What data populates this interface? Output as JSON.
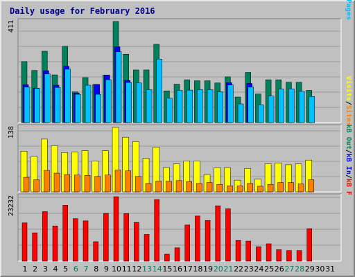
{
  "title": "Daily usage for February 2016",
  "colors": {
    "background": "#c0c0c0",
    "panel": "#c0c0c0",
    "grid": "#9a9a9a",
    "hits": "#00805c",
    "files": "#0000ff",
    "pages": "#00c0ff",
    "visits": "#ffff00",
    "sites": "#ff8000",
    "kbf": "#ff0000",
    "kbin": "#0000ff",
    "kbout": "#00805c",
    "weekday": "#000000",
    "weekend": "#00805c"
  },
  "chart_data": [
    {
      "type": "bar",
      "name": "hits-files-pages",
      "ymax_label": "411",
      "ylim": [
        0,
        411
      ],
      "categories": [
        "1",
        "2",
        "3",
        "4",
        "5",
        "6",
        "7",
        "8",
        "9",
        "10",
        "11",
        "12",
        "13",
        "14",
        "15",
        "16",
        "17",
        "18",
        "19",
        "20",
        "21",
        "22",
        "23",
        "24",
        "25",
        "26",
        "27",
        "28",
        "29",
        "30",
        "31"
      ],
      "legend": [
        {
          "text": "Pages",
          "color": "#00c0ff"
        },
        {
          "text": "/",
          "color": "#000000"
        },
        {
          "text": "Files",
          "color": "#0000ff"
        },
        {
          "text": "/",
          "color": "#000000"
        },
        {
          "text": "Hits",
          "color": "#00805c"
        }
      ],
      "series": [
        {
          "name": "Hits",
          "values": [
            248,
            212,
            290,
            194,
            310,
            125,
            183,
            155,
            193,
            411,
            278,
            214,
            214,
            318,
            129,
            156,
            174,
            170,
            170,
            161,
            186,
            104,
            204,
            116,
            174,
            174,
            164,
            164,
            131,
            0,
            0
          ]
        },
        {
          "name": "Files",
          "values": [
            154,
            140,
            211,
            152,
            229,
            120,
            0,
            155,
            193,
            308,
            171,
            0,
            0,
            0,
            0,
            0,
            0,
            0,
            0,
            0,
            162,
            0,
            159,
            0,
            0,
            0,
            0,
            0,
            0,
            0,
            0
          ]
        },
        {
          "name": "Pages",
          "values": [
            144,
            139,
            198,
            143,
            217,
            115,
            152,
            115,
            174,
            288,
            163,
            161,
            134,
            258,
            99,
            131,
            132,
            134,
            134,
            125,
            153,
            76,
            144,
            72,
            108,
            136,
            137,
            127,
            106,
            0,
            0
          ]
        }
      ]
    },
    {
      "type": "bar",
      "name": "visits-sites",
      "ymax_label": "138",
      "ylim": [
        0,
        138
      ],
      "categories": [
        "1",
        "2",
        "3",
        "4",
        "5",
        "6",
        "7",
        "8",
        "9",
        "10",
        "11",
        "12",
        "13",
        "14",
        "15",
        "16",
        "17",
        "18",
        "19",
        "20",
        "21",
        "22",
        "23",
        "24",
        "25",
        "26",
        "27",
        "28",
        "29",
        "30",
        "31"
      ],
      "legend": [
        {
          "text": "Sites",
          "color": "#ff8000"
        },
        {
          "text": "/",
          "color": "#000000"
        },
        {
          "text": "Visits",
          "color": "#ffff00"
        }
      ],
      "series": [
        {
          "name": "Visits",
          "values": [
            87,
            76,
            113,
            99,
            84,
            85,
            88,
            66,
            88,
            138,
            117,
            108,
            72,
            96,
            52,
            60,
            66,
            66,
            37,
            52,
            52,
            25,
            50,
            27,
            60,
            62,
            58,
            60,
            68,
            0,
            0
          ]
        },
        {
          "name": "Sites",
          "values": [
            31,
            26,
            46,
            40,
            37,
            36,
            35,
            33,
            36,
            47,
            45,
            33,
            18,
            23,
            23,
            24,
            22,
            18,
            20,
            16,
            13,
            13,
            18,
            12,
            16,
            20,
            20,
            17,
            26,
            0,
            0
          ]
        }
      ]
    },
    {
      "type": "bar",
      "name": "kbytes",
      "ymax_label": "23232",
      "ylim": [
        0,
        23232
      ],
      "categories": [
        "1",
        "2",
        "3",
        "4",
        "5",
        "6",
        "7",
        "8",
        "9",
        "10",
        "11",
        "12",
        "13",
        "14",
        "15",
        "16",
        "17",
        "18",
        "19",
        "20",
        "21",
        "22",
        "23",
        "24",
        "25",
        "26",
        "27",
        "28",
        "29",
        "30",
        "31"
      ],
      "legend": [
        {
          "text": "kB F",
          "color": "#ff0000"
        },
        {
          "text": "/",
          "color": "#000000"
        },
        {
          "text": "kB In",
          "color": "#0000ff"
        },
        {
          "text": "/",
          "color": "#000000"
        },
        {
          "text": "kB Out",
          "color": "#00805c"
        }
      ],
      "series": [
        {
          "name": "kB F",
          "values": [
            13790,
            10200,
            17860,
            12680,
            20140,
            15320,
            14520,
            7000,
            17210,
            23232,
            17130,
            13960,
            9630,
            22200,
            2500,
            4800,
            13020,
            16260,
            14640,
            19950,
            18860,
            7440,
            7220,
            5180,
            6250,
            4110,
            3830,
            3830,
            11710,
            0,
            0
          ]
        }
      ]
    }
  ],
  "x_labels": [
    {
      "d": "1",
      "weekend": false
    },
    {
      "d": "2",
      "weekend": false
    },
    {
      "d": "3",
      "weekend": false
    },
    {
      "d": "4",
      "weekend": false
    },
    {
      "d": "5",
      "weekend": false
    },
    {
      "d": "6",
      "weekend": true
    },
    {
      "d": "7",
      "weekend": true
    },
    {
      "d": "8",
      "weekend": false
    },
    {
      "d": "9",
      "weekend": false
    },
    {
      "d": "10",
      "weekend": false
    },
    {
      "d": "11",
      "weekend": false
    },
    {
      "d": "12",
      "weekend": false
    },
    {
      "d": "13",
      "weekend": true
    },
    {
      "d": "14",
      "weekend": true
    },
    {
      "d": "15",
      "weekend": false
    },
    {
      "d": "16",
      "weekend": false
    },
    {
      "d": "17",
      "weekend": false
    },
    {
      "d": "18",
      "weekend": false
    },
    {
      "d": "19",
      "weekend": false
    },
    {
      "d": "20",
      "weekend": true
    },
    {
      "d": "21",
      "weekend": true
    },
    {
      "d": "22",
      "weekend": false
    },
    {
      "d": "23",
      "weekend": false
    },
    {
      "d": "24",
      "weekend": false
    },
    {
      "d": "25",
      "weekend": false
    },
    {
      "d": "26",
      "weekend": false
    },
    {
      "d": "27",
      "weekend": true
    },
    {
      "d": "28",
      "weekend": true
    },
    {
      "d": "29",
      "weekend": false
    },
    {
      "d": "30",
      "weekend": false
    },
    {
      "d": "31",
      "weekend": false
    }
  ]
}
